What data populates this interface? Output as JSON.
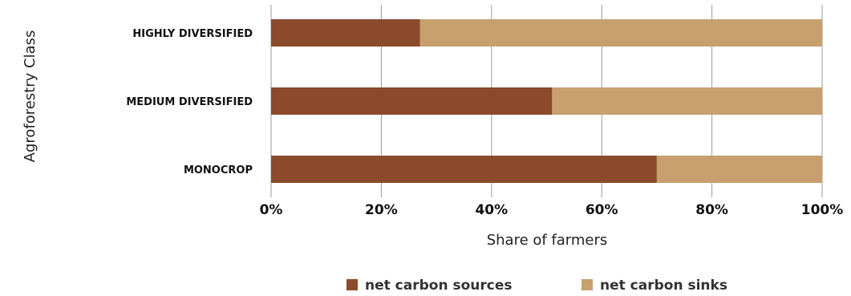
{
  "chart_data": {
    "type": "bar",
    "orientation": "horizontal",
    "stacked": true,
    "categories": [
      "HIGHLY DIVERSIFIED",
      "MEDIUM DIVERSIFIED",
      "MONOCROP"
    ],
    "series": [
      {
        "name": "net carbon sources",
        "values": [
          27,
          51,
          70
        ],
        "color": "#8b4a2b"
      },
      {
        "name": "net carbon sinks",
        "values": [
          73,
          49,
          30
        ],
        "color": "#c7a06e"
      }
    ],
    "xlabel": "Share of farmers",
    "ylabel": "Agroforestry Class",
    "xlim": [
      0,
      100
    ],
    "xticks": [
      "0%",
      "20%",
      "40%",
      "60%",
      "80%",
      "100%"
    ],
    "grid": "vertical",
    "legend": "bottom"
  }
}
